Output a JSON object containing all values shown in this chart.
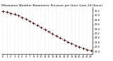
{
  "title": "Milwaukee Weather Barometric Pressure per Hour (Last 24 Hours)",
  "hours": [
    0,
    1,
    2,
    3,
    4,
    5,
    6,
    7,
    8,
    9,
    10,
    11,
    12,
    13,
    14,
    15,
    16,
    17,
    18,
    19,
    20,
    21,
    22,
    23
  ],
  "pressure": [
    30.18,
    30.14,
    30.09,
    30.04,
    29.98,
    29.91,
    29.83,
    29.74,
    29.65,
    29.55,
    29.46,
    29.36,
    29.27,
    29.17,
    29.08,
    28.99,
    28.91,
    28.82,
    28.74,
    28.67,
    28.6,
    28.54,
    28.48,
    28.43
  ],
  "line_color": "#cc0000",
  "marker_color": "#000000",
  "bg_color": "#ffffff",
  "grid_color": "#bbbbbb",
  "ylim_min": 28.3,
  "ylim_max": 30.35,
  "title_fontsize": 3.2,
  "tick_fontsize": 2.5,
  "ytick_values": [
    28.4,
    28.6,
    28.8,
    29.0,
    29.2,
    29.4,
    29.6,
    29.8,
    30.0,
    30.2
  ]
}
